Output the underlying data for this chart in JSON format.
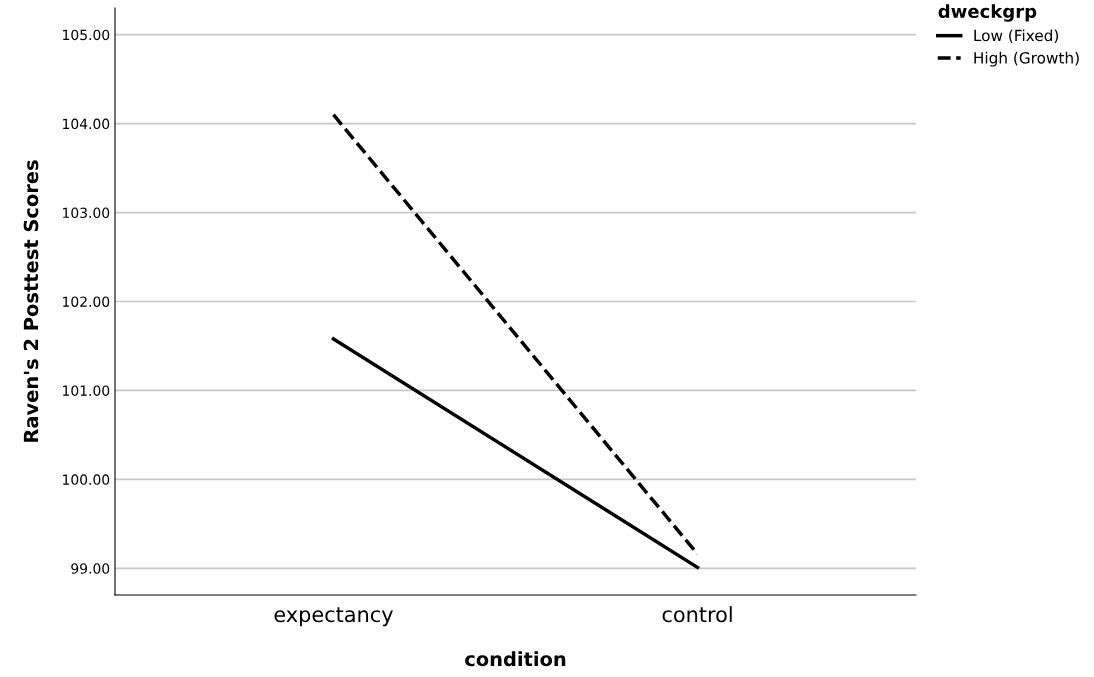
{
  "chart_data": {
    "type": "line",
    "xlabel": "condition",
    "ylabel": "Raven's 2 Posttest Scores",
    "legend_title": "dweckgrp",
    "categories": [
      "expectancy",
      "control"
    ],
    "series": [
      {
        "name": "Low (Fixed)",
        "color": "#000000",
        "values": [
          101.58,
          99.01
        ],
        "line_style": "solid"
      },
      {
        "name": "High (Growth)",
        "color": "#000000",
        "values": [
          104.1,
          99.16
        ],
        "line_style": "dashed"
      }
    ],
    "ylim": [
      98.7,
      105.3
    ],
    "yticks": [
      {
        "value": 99,
        "label": "99.00"
      },
      {
        "value": 100,
        "label": "100.00"
      },
      {
        "value": 101,
        "label": "101.00"
      },
      {
        "value": 102,
        "label": "102.00"
      },
      {
        "value": 103,
        "label": "103.00"
      },
      {
        "value": 104,
        "label": "104.00"
      },
      {
        "value": 105,
        "label": "105.00"
      }
    ],
    "grid": "y",
    "legend": "top right"
  }
}
